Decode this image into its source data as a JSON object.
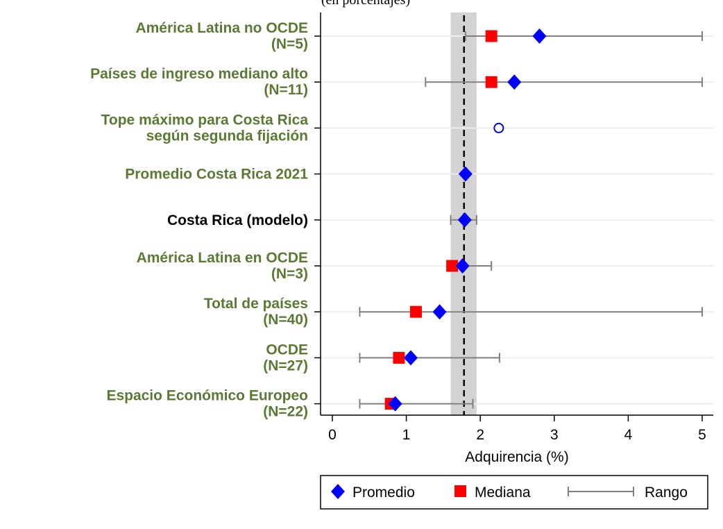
{
  "chart_data": {
    "type": "scatter",
    "subtitle": "(en porcentajes)",
    "xlabel": "Adquirencia (%)",
    "xlim": [
      0,
      5
    ],
    "xticks": [
      "0",
      "1",
      "2",
      "3",
      "4",
      "5"
    ],
    "reference_line": 1.78,
    "reference_band": [
      1.6,
      1.95
    ],
    "colors": {
      "label_green": "#5a7a34",
      "label_black": "#000000",
      "promedio": "#0000ff",
      "mediana": "#ff0000",
      "rango": "#808080",
      "band": "#d3d3d3",
      "grid": "#e8eef2"
    },
    "categories": [
      {
        "label_lines": [
          "América Latina no OCDE",
          "(N=5)"
        ],
        "label_color": "green",
        "promedio": 2.8,
        "mediana": 2.15,
        "range": [
          1.8,
          5.0
        ],
        "marker": "diamond"
      },
      {
        "label_lines": [
          "Países de ingreso mediano alto",
          "(N=11)"
        ],
        "label_color": "green",
        "promedio": 2.46,
        "mediana": 2.15,
        "range": [
          1.26,
          5.0
        ],
        "marker": "diamond"
      },
      {
        "label_lines": [
          "Tope máximo para Costa Rica",
          "según segunda fijación"
        ],
        "label_color": "green",
        "promedio": 2.25,
        "marker": "circle"
      },
      {
        "label_lines": [
          "Promedio Costa Rica 2021"
        ],
        "label_color": "green",
        "promedio": 1.8,
        "marker": "diamond"
      },
      {
        "label_lines": [
          "Costa Rica (modelo)"
        ],
        "label_color": "black",
        "promedio": 1.79,
        "range": [
          1.6,
          1.95
        ],
        "marker": "diamond"
      },
      {
        "label_lines": [
          "América Latina en OCDE",
          "(N=3)"
        ],
        "label_color": "green",
        "promedio": 1.76,
        "mediana": 1.62,
        "range": [
          1.55,
          2.15
        ],
        "marker": "diamond"
      },
      {
        "label_lines": [
          "Total de países",
          "(N=40)"
        ],
        "label_color": "green",
        "promedio": 1.45,
        "mediana": 1.13,
        "range": [
          0.37,
          5.0
        ],
        "marker": "diamond"
      },
      {
        "label_lines": [
          "OCDE",
          "(N=27)"
        ],
        "label_color": "green",
        "promedio": 1.06,
        "mediana": 0.9,
        "range": [
          0.37,
          2.26
        ],
        "marker": "diamond"
      },
      {
        "label_lines": [
          "Espacio Económico Europeo",
          "(N=22)"
        ],
        "label_color": "green",
        "promedio": 0.85,
        "mediana": 0.79,
        "range": [
          0.37,
          1.9
        ],
        "marker": "diamond"
      }
    ],
    "legend": {
      "items": [
        "Promedio",
        "Mediana",
        "Rango"
      ],
      "placement": "bottom"
    }
  }
}
